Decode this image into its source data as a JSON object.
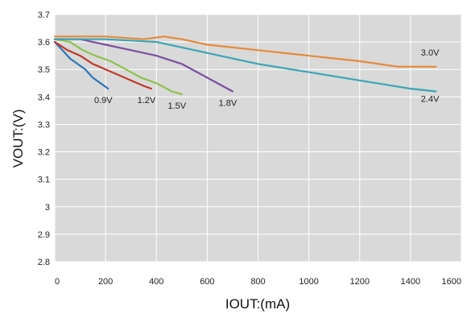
{
  "chart_data": {
    "type": "line",
    "title": "",
    "xlabel": "IOUT:(mA)",
    "ylabel": "VOUT:(V)",
    "xlim": [
      0,
      1600
    ],
    "ylim": [
      2.8,
      3.7
    ],
    "x_ticks": [
      "0",
      "200",
      "400",
      "600",
      "800",
      "1000",
      "1200",
      "1400",
      "1600"
    ],
    "y_ticks": [
      "2.8",
      "2.9",
      "3",
      "3.1",
      "3.2",
      "3.3",
      "3.4",
      "3.5",
      "3.6",
      "3.7"
    ],
    "grid": true,
    "plot_background": "#d9d9d9",
    "series": [
      {
        "name": "0.9V",
        "color": "#2e75b6",
        "x": [
          0,
          30,
          60,
          90,
          120,
          150,
          180,
          210
        ],
        "y": [
          3.6,
          3.57,
          3.54,
          3.52,
          3.5,
          3.47,
          3.45,
          3.43
        ]
      },
      {
        "name": "1.2V",
        "color": "#c0392b",
        "x": [
          0,
          50,
          100,
          150,
          200,
          250,
          300,
          350,
          380
        ],
        "y": [
          3.6,
          3.57,
          3.55,
          3.52,
          3.5,
          3.48,
          3.46,
          3.44,
          3.43
        ]
      },
      {
        "name": "1.5V",
        "color": "#8fc14d",
        "x": [
          0,
          60,
          110,
          160,
          220,
          280,
          340,
          400,
          460,
          500
        ],
        "y": [
          3.61,
          3.6,
          3.57,
          3.55,
          3.53,
          3.5,
          3.47,
          3.45,
          3.42,
          3.41
        ]
      },
      {
        "name": "1.8V",
        "color": "#7b4fa0",
        "x": [
          0,
          100,
          200,
          300,
          400,
          500,
          560,
          620,
          680,
          700
        ],
        "y": [
          3.61,
          3.61,
          3.59,
          3.57,
          3.55,
          3.52,
          3.49,
          3.46,
          3.43,
          3.42
        ]
      },
      {
        "name": "2.4V",
        "color": "#3aa6b4",
        "x": [
          0,
          200,
          400,
          600,
          800,
          1000,
          1200,
          1400,
          1500
        ],
        "y": [
          3.61,
          3.61,
          3.6,
          3.56,
          3.52,
          3.49,
          3.46,
          3.43,
          3.42
        ]
      },
      {
        "name": "3.0V",
        "color": "#e68a3a",
        "x": [
          0,
          200,
          350,
          430,
          500,
          600,
          800,
          1000,
          1200,
          1350,
          1500
        ],
        "y": [
          3.62,
          3.62,
          3.61,
          3.62,
          3.61,
          3.59,
          3.57,
          3.55,
          3.53,
          3.51,
          3.51
        ]
      }
    ],
    "labels": [
      {
        "text": "0.9V",
        "series": 0
      },
      {
        "text": "1.2V",
        "series": 1
      },
      {
        "text": "1.5V",
        "series": 2
      },
      {
        "text": "1.8V",
        "series": 3
      },
      {
        "text": "2.4V",
        "series": 4
      },
      {
        "text": "3.0V",
        "series": 5
      }
    ]
  }
}
